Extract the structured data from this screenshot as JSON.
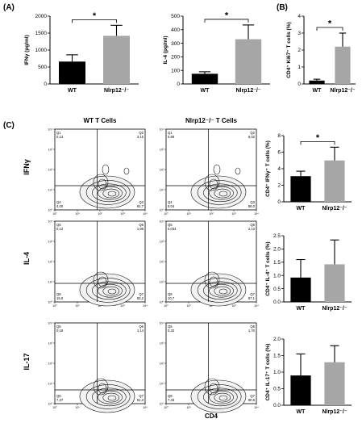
{
  "panels": {
    "a": "(A)",
    "b": "(B)",
    "c": "(C)"
  },
  "colors": {
    "wt": "#000000",
    "ko": "#a6a6a6",
    "err": "#000000"
  },
  "flow": {
    "headers": [
      "WT T Cells",
      "Nlrp12⁻/⁻ T Cells"
    ],
    "rows": [
      "IFNγ",
      "IL-4",
      "IL-17"
    ],
    "x_label": "CD4",
    "tick_labels": [
      "10⁰",
      "10¹",
      "10²",
      "10³",
      "10⁴"
    ],
    "plots": [
      {
        "quads": [
          {
            "name": "Q1",
            "value": "0,14"
          },
          {
            "name": "Q2",
            "value": "3,15"
          },
          {
            "name": "Q4",
            "value": "4,00"
          },
          {
            "name": "Q3",
            "value": "92,7"
          }
        ]
      },
      {
        "quads": [
          {
            "name": "Q1",
            "value": "0,89"
          },
          {
            "name": "Q2",
            "value": "6,02"
          },
          {
            "name": "Q4",
            "value": "5,04"
          },
          {
            "name": "Q3",
            "value": "88,0"
          }
        ]
      },
      {
        "quads": [
          {
            "name": "Q5",
            "value": "0,12"
          },
          {
            "name": "Q6",
            "value": "1,88"
          },
          {
            "name": "Q8",
            "value": "15,0"
          },
          {
            "name": "Q7",
            "value": "83,2"
          }
        ]
      },
      {
        "quads": [
          {
            "name": "Q5",
            "value": "0,034"
          },
          {
            "name": "Q6",
            "value": "2,13"
          },
          {
            "name": "Q8",
            "value": "10,7"
          },
          {
            "name": "Q7",
            "value": "87,1"
          }
        ]
      },
      {
        "quads": [
          {
            "name": "Q5",
            "value": "0,16"
          },
          {
            "name": "Q6",
            "value": "1,14"
          },
          {
            "name": "Q8",
            "value": "7,37"
          },
          {
            "name": "Q7",
            "value": "91,3"
          }
        ]
      },
      {
        "quads": [
          {
            "name": "Q5",
            "value": "0,32"
          },
          {
            "name": "Q6",
            "value": "1,70"
          },
          {
            "name": "Q8",
            "value": "7,33"
          },
          {
            "name": "Q7",
            "value": "90,6"
          }
        ]
      }
    ]
  },
  "chart_data": [
    {
      "id": "ifng",
      "type": "bar",
      "categories": [
        "WT",
        "Nlrp12⁻/⁻"
      ],
      "values": [
        660,
        1420
      ],
      "errors": [
        200,
        310
      ],
      "ylabel": "IFNγ (pg/ml)",
      "ylim": [
        0,
        2000
      ],
      "yticks": [
        0,
        500,
        1000,
        1500,
        2000
      ],
      "significance": "*"
    },
    {
      "id": "il4",
      "type": "bar",
      "categories": [
        "WT",
        "Nlrp12⁻/⁻"
      ],
      "values": [
        75,
        330
      ],
      "errors": [
        15,
        105
      ],
      "ylabel": "IL-4 (pg/ml)",
      "ylim": [
        0,
        500
      ],
      "yticks": [
        0,
        100,
        200,
        300,
        400,
        500
      ],
      "significance": "*"
    },
    {
      "id": "ki67",
      "type": "bar",
      "categories": [
        "WT",
        "Nlrp12⁻/⁻"
      ],
      "values": [
        0.2,
        2.2
      ],
      "errors": [
        0.08,
        0.8
      ],
      "ylabel": "CD4⁺ Ki67⁺ T cells (%)",
      "ylim": [
        0,
        4
      ],
      "yticks": [
        0,
        1,
        2,
        3,
        4
      ],
      "significance": "*"
    },
    {
      "id": "ifng_pct",
      "type": "bar",
      "categories": [
        "WT",
        "Nlrp12⁻/⁻"
      ],
      "values": [
        3.1,
        5.0
      ],
      "errors": [
        0.6,
        1.6
      ],
      "ylabel": "CD4⁺ IFNγ⁺ T cells (%)",
      "ylim": [
        0,
        8
      ],
      "yticks": [
        0,
        2,
        4,
        6,
        8
      ],
      "significance": "*"
    },
    {
      "id": "il4_pct",
      "type": "bar",
      "categories": [
        "WT",
        "Nlrp12⁻/⁻"
      ],
      "values": [
        0.92,
        1.42
      ],
      "errors": [
        0.68,
        0.92
      ],
      "ylabel": "CD4⁺ IL-4⁺ T cells (%)",
      "ylim": [
        0,
        2.5
      ],
      "yticks": [
        0,
        0.5,
        1.0,
        1.5,
        2.0,
        2.5
      ],
      "significance": ""
    },
    {
      "id": "il17_pct",
      "type": "bar",
      "categories": [
        "WT",
        "Nlrp12⁻/⁻"
      ],
      "values": [
        0.9,
        1.3
      ],
      "errors": [
        0.65,
        0.5
      ],
      "ylabel": "CD4⁺ IL-17⁺ T cells (%)",
      "ylim": [
        0,
        2.0
      ],
      "yticks": [
        0,
        0.5,
        1.0,
        1.5,
        2.0
      ],
      "significance": ""
    }
  ]
}
